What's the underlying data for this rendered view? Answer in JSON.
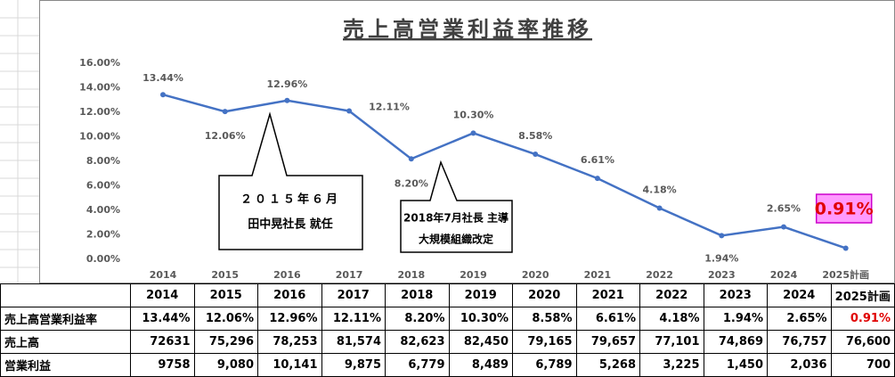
{
  "chart_data": {
    "type": "line",
    "title": "売上高営業利益率推移",
    "categories": [
      "2014",
      "2015",
      "2016",
      "2017",
      "2018",
      "2019",
      "2020",
      "2021",
      "2022",
      "2023",
      "2024",
      "2025計画"
    ],
    "values": [
      13.44,
      12.06,
      12.96,
      12.11,
      8.2,
      10.3,
      8.58,
      6.61,
      4.18,
      1.94,
      2.65,
      0.91
    ],
    "value_labels": [
      "13.44%",
      "12.06%",
      "12.96%",
      "12.11%",
      "8.20%",
      "10.30%",
      "8.58%",
      "6.61%",
      "4.18%",
      "1.94%",
      "2.65%",
      "0.91%"
    ],
    "color": "#4472c4",
    "ylim": [
      0,
      16
    ],
    "yticks": [
      {
        "value": 0,
        "label": "0.00%"
      },
      {
        "value": 2,
        "label": "2.00%"
      },
      {
        "value": 4,
        "label": "4.00%"
      },
      {
        "value": 6,
        "label": "6.00%"
      },
      {
        "value": 8,
        "label": "8.00%"
      },
      {
        "value": 10,
        "label": "10.00%"
      },
      {
        "value": 12,
        "label": "12.00%"
      },
      {
        "value": 14,
        "label": "14.00%"
      },
      {
        "value": 16,
        "label": "16.00%"
      }
    ],
    "grid": false,
    "annotations": [
      {
        "lines": [
          "２０１５年６月",
          "田中晃社長 就任"
        ]
      },
      {
        "lines": [
          "2018年7月社長 主導",
          "大規模組織改定"
        ]
      }
    ]
  },
  "table": {
    "columns": [
      "2014",
      "2015",
      "2016",
      "2017",
      "2018",
      "2019",
      "2020",
      "2021",
      "2022",
      "2023",
      "2024",
      "2025計画"
    ],
    "rows": [
      {
        "label": "売上高営業利益率",
        "cells": [
          "13.44%",
          "12.06%",
          "12.96%",
          "12.11%",
          "8.20%",
          "10.30%",
          "8.58%",
          "6.61%",
          "4.18%",
          "1.94%",
          "2.65%",
          "0.91%"
        ]
      },
      {
        "label": "売上高",
        "cells": [
          "72631",
          "75,296",
          "78,253",
          "81,574",
          "82,623",
          "82,450",
          "79,165",
          "79,657",
          "77,101",
          "74,869",
          "76,757",
          "76,600"
        ]
      },
      {
        "label": "営業利益",
        "cells": [
          "9758",
          "9,080",
          "10,141",
          "9,875",
          "6,779",
          "8,489",
          "6,789",
          "5,268",
          "3,225",
          "1,450",
          "2,036",
          "700"
        ]
      }
    ]
  }
}
